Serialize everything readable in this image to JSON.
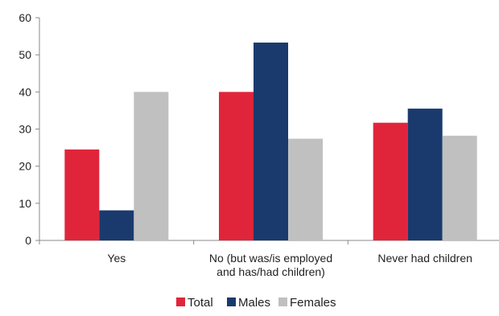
{
  "chart_data": {
    "type": "bar",
    "title": "",
    "xlabel": "",
    "ylabel": "",
    "categories": [
      [
        "Yes"
      ],
      [
        "No (but was/is employed",
        "and has/had children)"
      ],
      [
        "Never had children"
      ]
    ],
    "series": [
      {
        "name": "Total",
        "color": "#e0253a",
        "values": [
          24.5,
          40.0,
          31.7
        ]
      },
      {
        "name": "Males",
        "color": "#1a3a6e",
        "values": [
          8.1,
          53.3,
          35.5
        ]
      },
      {
        "name": "Females",
        "color": "#c0c0c0",
        "values": [
          40.0,
          27.4,
          28.2
        ]
      }
    ],
    "ylim": [
      0,
      60
    ],
    "yticks": [
      0,
      10,
      20,
      30,
      40,
      50,
      60
    ],
    "grid": false,
    "legend_position": "bottom-center"
  }
}
